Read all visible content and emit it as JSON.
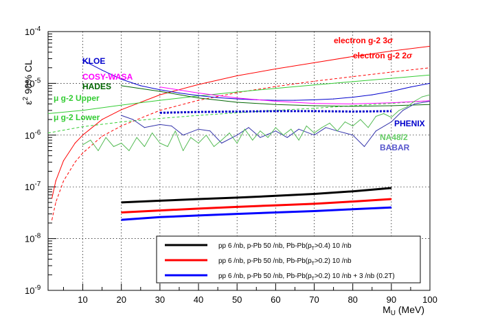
{
  "chart_data": {
    "type": "line",
    "xlabel_main": "M",
    "xlabel_sub": "U",
    "xlabel_unit": " (MeV)",
    "ylabel_main": "ε",
    "ylabel_sup": "2",
    "ylabel_rest": " 90% CL",
    "xlim": [
      1,
      100
    ],
    "ylim": [
      1e-09,
      0.0001
    ],
    "yscale": "log",
    "grid": true,
    "x_ticks": [
      "10",
      "20",
      "30",
      "40",
      "50",
      "60",
      "70",
      "80",
      "90",
      "100"
    ],
    "y_ticks": [
      {
        "base": "10",
        "exp": "-9"
      },
      {
        "base": "10",
        "exp": "-8"
      },
      {
        "base": "10",
        "exp": "-7"
      },
      {
        "base": "10",
        "exp": "-6"
      },
      {
        "base": "10",
        "exp": "-5"
      },
      {
        "base": "10",
        "exp": "-4"
      }
    ],
    "annotations": [
      {
        "id": "ann-kloe",
        "text": "KLOE",
        "color": "#0000cc"
      },
      {
        "id": "ann-cosy",
        "text": "COSY-WASA",
        "color": "#ff00ff"
      },
      {
        "id": "ann-hades",
        "text": "HADES",
        "color": "#006600"
      },
      {
        "id": "ann-mu-upper",
        "text": "μ g-2 Upper",
        "color": "#33cc33"
      },
      {
        "id": "ann-mu-lower",
        "text": "μ g-2 Lower",
        "color": "#33cc33"
      },
      {
        "id": "ann-e3",
        "text_main": "electron g-2 3",
        "text_sym": "σ",
        "color": "#ff0000"
      },
      {
        "id": "ann-e2",
        "text_main": "electron g-2 2",
        "text_sym": "σ",
        "color": "#ff0000"
      },
      {
        "id": "ann-phenix",
        "text": "PHENIX",
        "color": "#0000cc"
      },
      {
        "id": "ann-na48",
        "text": "NA48/2",
        "color": "#66cc66"
      },
      {
        "id": "ann-babar",
        "text": "BABAR",
        "color": "#5555cc"
      }
    ],
    "legend": {
      "placement": "bottom-right",
      "entries": [
        {
          "id": "leg-black",
          "color": "#000000",
          "pre": "pp 6 /nb, p-Pb 50 /nb, Pb-Pb(p",
          "sub": "T",
          "post": ">0.4) 10 /nb"
        },
        {
          "id": "leg-red",
          "color": "#ff0000",
          "pre": "pp 6 /nb, p-Pb 50 /nb, Pb-Pb(p",
          "sub": "T",
          "post": ">0.2) 10 /nb"
        },
        {
          "id": "leg-blue",
          "color": "#0000ff",
          "pre": "pp 6 /nb, p-Pb 50 /nb, Pb-Pb(p",
          "sub": "T",
          "post": ">0.2) 10 /nb + 3 /nb (0.2T)"
        }
      ]
    },
    "series": [
      {
        "id": "alice-black",
        "color": "#000000",
        "style": "solid-thick",
        "x": [
          20,
          30,
          40,
          50,
          60,
          70,
          80,
          90
        ],
        "y": [
          5e-08,
          5.4e-08,
          5.8e-08,
          6.2e-08,
          6.7e-08,
          7.3e-08,
          8.2e-08,
          9.5e-08
        ]
      },
      {
        "id": "alice-red",
        "color": "#ff0000",
        "style": "solid-thick",
        "x": [
          20,
          30,
          40,
          50,
          60,
          70,
          80,
          90
        ],
        "y": [
          3.2e-08,
          3.5e-08,
          3.8e-08,
          4.1e-08,
          4.4e-08,
          4.7e-08,
          5.2e-08,
          5.8e-08
        ]
      },
      {
        "id": "alice-blue",
        "color": "#0000ff",
        "style": "solid-thick",
        "x": [
          20,
          30,
          40,
          50,
          60,
          70,
          80,
          90
        ],
        "y": [
          2.3e-08,
          2.6e-08,
          2.8e-08,
          3e-08,
          3.2e-08,
          3.4e-08,
          3.7e-08,
          4e-08
        ]
      },
      {
        "id": "electron-g2-3sigma",
        "color": "#ff0000",
        "style": "solid",
        "x": [
          2,
          3,
          5,
          8,
          10,
          15,
          20,
          30,
          40,
          50,
          60,
          70,
          80,
          90,
          100
        ],
        "y": [
          6e-08,
          1.3e-07,
          3.2e-07,
          7e-07,
          1e-06,
          2e-06,
          3.1e-06,
          6e-06,
          9.5e-06,
          1.4e-05,
          1.9e-05,
          2.5e-05,
          3.3e-05,
          4.2e-05,
          5.2e-05
        ]
      },
      {
        "id": "electron-g2-2sigma",
        "color": "#ff0000",
        "style": "dashed",
        "x": [
          2,
          3,
          5,
          8,
          10,
          15,
          20,
          30,
          40,
          50,
          60,
          70,
          80,
          90,
          100
        ],
        "y": [
          2.3e-08,
          5e-08,
          1.3e-07,
          3e-07,
          4.5e-07,
          9.5e-07,
          1.5e-06,
          3e-06,
          4.7e-06,
          6.6e-06,
          8.7e-06,
          1.1e-05,
          1.35e-05,
          1.65e-05,
          2e-05
        ]
      },
      {
        "id": "mu-g2-upper",
        "color": "#33cc33",
        "style": "solid",
        "x": [
          1,
          10,
          20,
          30,
          40,
          50,
          60,
          70,
          80,
          90,
          100
        ],
        "y": [
          2.6e-06,
          3e-06,
          3.8e-06,
          4.7e-06,
          5.7e-06,
          6.8e-06,
          8e-06,
          9.3e-06,
          1.08e-05,
          1.25e-05,
          1.45e-05
        ]
      },
      {
        "id": "mu-g2-lower",
        "color": "#33cc33",
        "style": "dashed",
        "x": [
          1,
          10,
          20,
          30,
          40,
          50,
          60,
          70,
          80,
          90,
          100
        ],
        "y": [
          1.1e-06,
          1.45e-06,
          1.8e-06,
          2.1e-06,
          2.4e-06,
          2.7e-06,
          3e-06,
          3.3e-06,
          3.7e-06,
          4.1e-06,
          4.6e-06
        ]
      },
      {
        "id": "kloe",
        "color": "#0000cc",
        "style": "solid",
        "x": [
          10,
          15,
          20,
          25,
          30,
          35,
          40,
          45,
          50,
          55,
          60,
          65,
          70,
          75,
          80,
          85,
          90,
          95,
          100
        ],
        "y": [
          2.8e-05,
          1.8e-05,
          1.2e-05,
          9e-06,
          7.5e-06,
          6.5e-06,
          5.8e-06,
          5.3e-06,
          5e-06,
          4.8e-06,
          4.7e-06,
          4.7e-06,
          4.8e-06,
          5e-06,
          5.4e-06,
          6e-06,
          7e-06,
          8.5e-06,
          1e-05
        ]
      },
      {
        "id": "cosy-wasa",
        "color": "#ff00ff",
        "style": "solid",
        "x": [
          30,
          40,
          50,
          60,
          70,
          80,
          90,
          100
        ],
        "y": [
          8.5e-06,
          6.5e-06,
          5.2e-06,
          4.5e-06,
          4.1e-06,
          4e-06,
          4.2e-06,
          4.6e-06
        ]
      },
      {
        "id": "hades",
        "color": "#006600",
        "style": "solid",
        "x": [
          20,
          30,
          40,
          50,
          60,
          70,
          80,
          90,
          100
        ],
        "y": [
          9e-06,
          7e-06,
          5.2e-06,
          4.3e-06,
          3.9e-06,
          3.7e-06,
          3.6e-06,
          3.7e-06,
          3.9e-06
        ]
      },
      {
        "id": "phenix",
        "color": "#0000cc",
        "style": "dotted-thick",
        "x": [
          30,
          40,
          50,
          60,
          70,
          80,
          90
        ],
        "y": [
          2.7e-06,
          2.8e-06,
          2.85e-06,
          2.9e-06,
          2.9e-06,
          2.85e-06,
          2.9e-06
        ]
      },
      {
        "id": "babar",
        "color": "#3333aa",
        "style": "solid",
        "x": [
          20,
          23,
          26,
          30,
          33,
          36,
          40,
          43,
          46,
          50,
          53,
          56,
          60,
          63,
          66,
          70,
          73,
          76,
          80,
          83,
          86,
          90,
          93,
          96,
          100
        ],
        "y": [
          2.4e-06,
          2e-06,
          1.4e-06,
          1.6e-06,
          1.5e-06,
          1e-06,
          1.3e-06,
          1.2e-06,
          7e-07,
          1e-06,
          1.4e-06,
          9e-07,
          1.2e-06,
          9e-07,
          1.3e-06,
          1e-06,
          1.4e-06,
          1.2e-06,
          1e-06,
          6e-07,
          1.2e-06,
          1.8e-06,
          3e-06,
          4e-06,
          4.5e-06
        ]
      },
      {
        "id": "na48-2",
        "color": "#55bb55",
        "style": "jagged",
        "x": [
          10,
          12,
          14,
          16,
          18,
          20,
          22,
          24,
          26,
          28,
          30,
          32,
          34,
          36,
          38,
          40,
          42,
          44,
          46,
          48,
          50,
          52,
          54,
          56,
          58,
          60,
          62,
          64,
          66,
          68,
          70,
          72,
          74,
          76,
          78,
          80,
          82,
          84,
          86,
          88,
          90,
          92,
          94,
          96,
          98,
          100
        ],
        "y": [
          6.5e-07,
          8e-07,
          5e-07,
          9e-07,
          6e-07,
          7e-07,
          5e-07,
          9e-07,
          6e-07,
          1.1e-06,
          7e-07,
          6e-07,
          1.2e-06,
          5e-07,
          9e-07,
          7e-07,
          1e-06,
          6e-07,
          8e-07,
          1.1e-06,
          7e-07,
          1.3e-06,
          8e-07,
          1.2e-06,
          9e-07,
          1.4e-06,
          1e-06,
          1.3e-06,
          8e-07,
          1.5e-06,
          1.1e-06,
          1.4e-06,
          1.7e-06,
          1.2e-06,
          1.8e-06,
          1.5e-06,
          2e-06,
          1.4e-06,
          2.3e-06,
          2.6e-06,
          2.2e-06,
          3e-06,
          3.5e-06,
          4.5e-06,
          5.5e-06,
          6e-06
        ]
      }
    ]
  }
}
